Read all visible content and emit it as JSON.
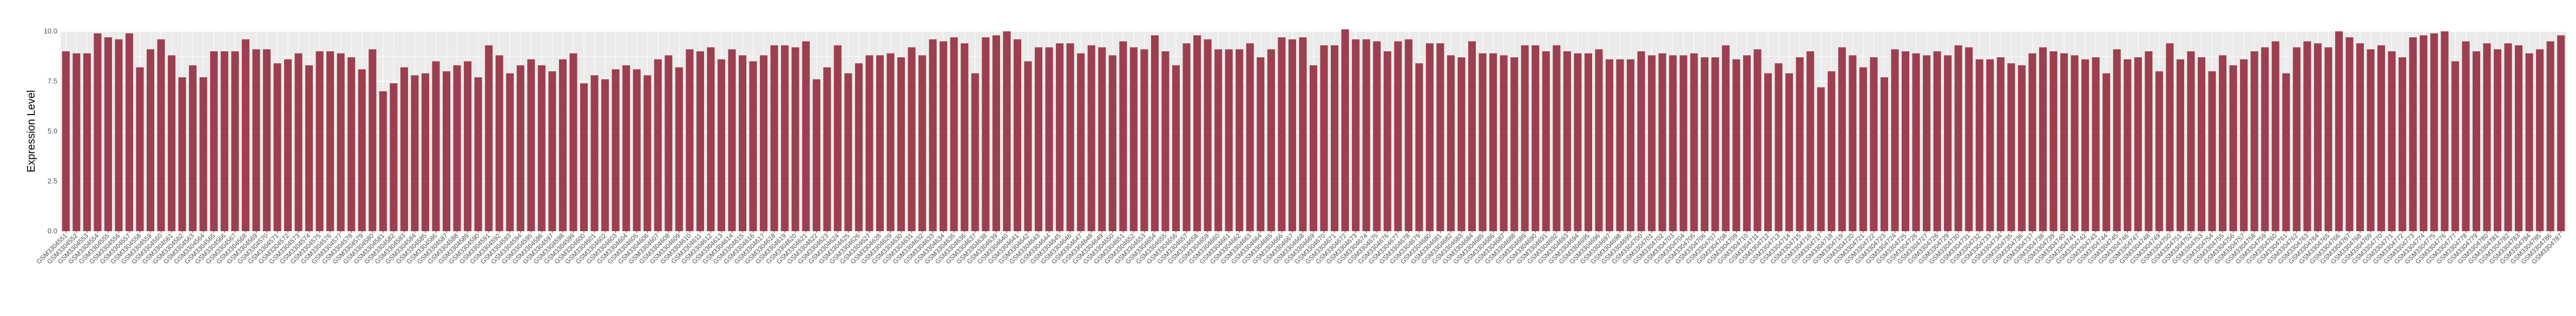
{
  "chart_data": {
    "type": "bar",
    "title": "",
    "xlabel": "",
    "ylabel": "Expression Level",
    "ylim": [
      0,
      10
    ],
    "yticks": [
      "0.0",
      "2.5",
      "5.0",
      "7.5",
      "10.0"
    ],
    "grid": true,
    "legend": "none",
    "colors": {
      "group1": "#9c3f4f",
      "group2": "#1d6b4a",
      "panel": "#ebebeb",
      "grid": "#ffffff"
    },
    "x_label_prefix": "GSM",
    "x_start_id": 3304551,
    "group1_count": 252,
    "values": [
      9.0,
      8.9,
      8.9,
      9.9,
      9.7,
      9.6,
      9.9,
      8.2,
      9.1,
      9.6,
      8.8,
      7.7,
      8.3,
      7.7,
      9.0,
      9.0,
      9.0,
      9.6,
      9.1,
      9.1,
      8.4,
      8.6,
      8.9,
      8.3,
      9.0,
      9.0,
      8.9,
      8.7,
      8.1,
      9.1,
      7.0,
      7.4,
      8.2,
      7.8,
      7.9,
      8.5,
      8.0,
      8.3,
      8.5,
      7.7,
      9.3,
      8.8,
      7.9,
      8.3,
      8.6,
      8.3,
      8.0,
      8.6,
      8.9,
      7.4,
      7.8,
      7.6,
      8.1,
      8.3,
      8.1,
      7.8,
      8.6,
      8.8,
      8.2,
      9.1,
      9.0,
      9.2,
      8.6,
      9.1,
      8.8,
      8.5,
      8.8,
      9.3,
      9.3,
      9.2,
      9.5,
      7.6,
      8.2,
      9.3,
      7.9,
      8.4,
      8.8,
      8.8,
      8.9,
      8.7,
      9.2,
      8.8,
      9.6,
      9.5,
      9.7,
      9.4,
      7.9,
      9.7,
      9.8,
      10.0,
      9.6,
      8.5,
      9.2,
      9.2,
      9.4,
      9.4,
      8.9,
      9.3,
      9.2,
      8.8,
      9.5,
      9.2,
      9.1,
      9.8,
      9.0,
      8.3,
      9.4,
      9.8,
      9.6,
      9.1,
      9.1,
      9.1,
      9.4,
      8.7,
      9.1,
      9.7,
      9.6,
      9.7,
      8.3,
      9.3,
      9.3,
      10.1,
      9.6,
      9.6,
      9.5,
      9.0,
      9.5,
      9.6,
      8.4,
      9.4,
      9.4,
      8.8,
      8.7,
      9.5,
      8.9,
      8.9,
      8.8,
      8.7,
      9.3,
      9.3,
      9.0,
      9.3,
      9.0,
      8.9,
      8.9,
      9.1,
      8.6,
      8.6,
      8.6,
      9.0,
      8.8,
      8.9,
      8.8,
      8.8,
      8.9,
      8.7,
      8.7,
      9.3,
      8.6,
      8.8,
      9.1,
      7.9,
      8.4,
      7.9,
      8.7,
      9.0,
      7.2,
      8.0,
      9.2,
      8.8,
      8.2,
      8.7,
      7.7,
      9.1,
      9.0,
      8.9,
      8.8,
      9.0,
      8.8,
      9.3,
      9.2,
      8.6,
      8.6,
      8.7,
      8.4,
      8.3,
      8.9,
      9.2,
      9.0,
      8.9,
      8.8,
      8.6,
      8.7,
      7.9,
      9.1,
      8.6,
      8.7,
      9.0,
      8.0,
      9.4,
      8.6,
      9.0,
      8.7,
      8.0,
      8.8,
      8.3,
      8.6,
      9.0,
      9.2,
      9.5,
      7.9,
      9.2,
      9.5,
      9.4,
      9.2,
      10.0,
      9.7,
      9.4,
      9.1,
      9.3,
      9.0,
      8.7,
      9.7,
      9.8,
      9.9,
      10.0,
      8.5,
      9.5,
      9.0,
      9.4,
      9.1,
      9.4,
      9.3,
      8.9,
      9.1,
      9.5,
      9.8
    ]
  }
}
